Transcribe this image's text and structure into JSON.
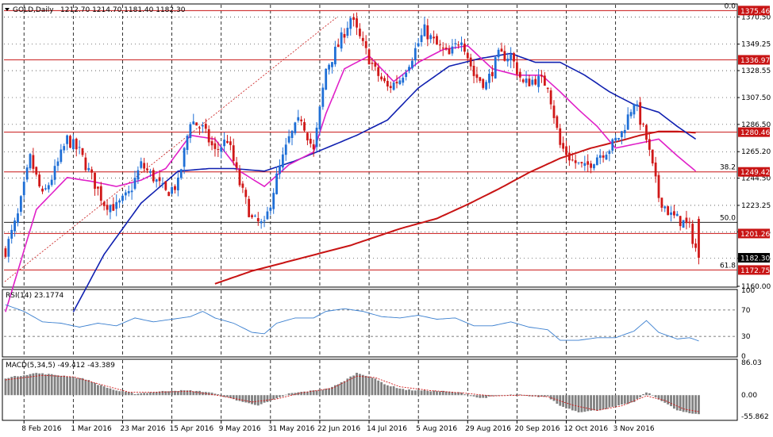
{
  "header": {
    "symbol": "GOLD,Daily",
    "ohlc": "1212.70 1214.70 1181.40 1182.30"
  },
  "colors": {
    "bull": "#1f6fd6",
    "bear": "#d01818",
    "ma_fast": "#e020c8",
    "ma_mid": "#1020b0",
    "ma_slow": "#c81414",
    "level_line": "#c81414",
    "rsi_line": "#3a7fcf",
    "hist": "#808080",
    "signal": "#d01818",
    "grid": "#000000"
  },
  "chart_data": [
    {
      "type": "candlestick",
      "title": "GOLD,Daily",
      "ylim": [
        1160.0,
        1380.0
      ],
      "x_ticks": [
        "8 Feb 2016",
        "1 Mar 2016",
        "23 Mar 2016",
        "15 Apr 2016",
        "9 May 2016",
        "31 May 2016",
        "22 Jun 2016",
        "14 Jul 2016",
        "5 Aug 2016",
        "29 Aug 2016",
        "20 Sep 2016",
        "12 Oct 2016",
        "3 Nov 2016"
      ],
      "y_ticks": [
        1160.0,
        1181.85,
        1202.55,
        1223.25,
        1244.5,
        1265.2,
        1286.5,
        1307.5,
        1328.55,
        1349.25,
        1370.5
      ],
      "last_price": 1182.3,
      "series": [
        {
          "name": "1375.46",
          "kind": "level",
          "value": 1375.46
        },
        {
          "name": "1336.97",
          "kind": "level",
          "value": 1336.97
        },
        {
          "name": "1280.46",
          "kind": "level",
          "value": 1280.46
        },
        {
          "name": "1249.42",
          "kind": "level",
          "value": 1249.42
        },
        {
          "name": "1201.26",
          "kind": "level",
          "value": 1201.26
        },
        {
          "name": "1172.75",
          "kind": "level",
          "value": 1172.75
        }
      ],
      "fibonacci": [
        {
          "label": "0.0",
          "value": 1375.46
        },
        {
          "label": "38.2",
          "value": 1249.42
        },
        {
          "label": "50.0",
          "value": 1210.0
        },
        {
          "label": "61.8",
          "value": 1172.75
        }
      ],
      "price_path": [
        [
          0,
          1188
        ],
        [
          4,
          1215
        ],
        [
          8,
          1260
        ],
        [
          12,
          1230
        ],
        [
          16,
          1250
        ],
        [
          20,
          1275
        ],
        [
          24,
          1265
        ],
        [
          28,
          1245
        ],
        [
          32,
          1225
        ],
        [
          36,
          1222
        ],
        [
          40,
          1232
        ],
        [
          44,
          1255
        ],
        [
          48,
          1245
        ],
        [
          52,
          1233
        ],
        [
          56,
          1240
        ],
        [
          60,
          1290
        ],
        [
          64,
          1283
        ],
        [
          68,
          1265
        ],
        [
          72,
          1275
        ],
        [
          76,
          1240
        ],
        [
          80,
          1212
        ],
        [
          84,
          1207
        ],
        [
          88,
          1245
        ],
        [
          92,
          1275
        ],
        [
          96,
          1292
        ],
        [
          100,
          1265
        ],
        [
          104,
          1330
        ],
        [
          108,
          1348
        ],
        [
          112,
          1370
        ],
        [
          116,
          1348
        ],
        [
          120,
          1328
        ],
        [
          124,
          1315
        ],
        [
          128,
          1322
        ],
        [
          132,
          1340
        ],
        [
          136,
          1360
        ],
        [
          140,
          1348
        ],
        [
          144,
          1340
        ],
        [
          148,
          1355
        ],
        [
          152,
          1325
        ],
        [
          156,
          1318
        ],
        [
          160,
          1340
        ],
        [
          164,
          1340
        ],
        [
          168,
          1318
        ],
        [
          172,
          1322
        ],
        [
          176,
          1318
        ],
        [
          180,
          1270
        ],
        [
          184,
          1258
        ],
        [
          188,
          1252
        ],
        [
          192,
          1262
        ],
        [
          196,
          1268
        ],
        [
          200,
          1280
        ],
        [
          204,
          1305
        ],
        [
          208,
          1275
        ],
        [
          212,
          1230
        ],
        [
          216,
          1215
        ],
        [
          220,
          1210
        ],
        [
          222,
          1205
        ],
        [
          225,
          1182.3
        ]
      ],
      "ma_fast": [
        [
          0,
          1140
        ],
        [
          10,
          1220
        ],
        [
          20,
          1245
        ],
        [
          28,
          1242
        ],
        [
          36,
          1238
        ],
        [
          44,
          1243
        ],
        [
          52,
          1252
        ],
        [
          60,
          1278
        ],
        [
          68,
          1275
        ],
        [
          76,
          1250
        ],
        [
          84,
          1238
        ],
        [
          92,
          1255
        ],
        [
          100,
          1265
        ],
        [
          104,
          1295
        ],
        [
          110,
          1330
        ],
        [
          118,
          1340
        ],
        [
          126,
          1320
        ],
        [
          134,
          1335
        ],
        [
          142,
          1345
        ],
        [
          150,
          1348
        ],
        [
          158,
          1330
        ],
        [
          166,
          1325
        ],
        [
          174,
          1325
        ],
        [
          180,
          1312
        ],
        [
          186,
          1298
        ],
        [
          192,
          1285
        ],
        [
          198,
          1268
        ],
        [
          206,
          1272
        ],
        [
          212,
          1275
        ],
        [
          218,
          1262
        ],
        [
          224,
          1250
        ]
      ],
      "ma_mid": [
        [
          22,
          1140
        ],
        [
          32,
          1185
        ],
        [
          44,
          1225
        ],
        [
          56,
          1250
        ],
        [
          66,
          1252
        ],
        [
          74,
          1252
        ],
        [
          84,
          1250
        ],
        [
          94,
          1258
        ],
        [
          104,
          1268
        ],
        [
          114,
          1278
        ],
        [
          124,
          1290
        ],
        [
          134,
          1315
        ],
        [
          144,
          1332
        ],
        [
          154,
          1338
        ],
        [
          164,
          1342
        ],
        [
          172,
          1335
        ],
        [
          180,
          1335
        ],
        [
          188,
          1325
        ],
        [
          196,
          1312
        ],
        [
          204,
          1302
        ],
        [
          212,
          1296
        ],
        [
          218,
          1285
        ],
        [
          224,
          1275
        ]
      ],
      "ma_slow": [
        [
          68,
          1162
        ],
        [
          80,
          1172
        ],
        [
          96,
          1182
        ],
        [
          112,
          1192
        ],
        [
          128,
          1205
        ],
        [
          140,
          1213
        ],
        [
          150,
          1224
        ],
        [
          160,
          1236
        ],
        [
          170,
          1249
        ],
        [
          180,
          1260
        ],
        [
          190,
          1268
        ],
        [
          200,
          1274
        ],
        [
          206,
          1278
        ],
        [
          212,
          1281
        ],
        [
          218,
          1281
        ],
        [
          224,
          1280
        ]
      ]
    },
    {
      "type": "line",
      "title": "RSI(14) 23.1774",
      "ylim": [
        0,
        100
      ],
      "y_ticks": [
        0,
        30,
        70,
        100
      ],
      "levels": [
        30,
        70
      ],
      "values": [
        [
          0,
          78
        ],
        [
          6,
          68
        ],
        [
          12,
          52
        ],
        [
          18,
          50
        ],
        [
          24,
          44
        ],
        [
          30,
          50
        ],
        [
          36,
          46
        ],
        [
          42,
          58
        ],
        [
          48,
          52
        ],
        [
          54,
          56
        ],
        [
          60,
          60
        ],
        [
          64,
          68
        ],
        [
          68,
          58
        ],
        [
          74,
          50
        ],
        [
          80,
          36
        ],
        [
          84,
          34
        ],
        [
          88,
          50
        ],
        [
          94,
          58
        ],
        [
          100,
          58
        ],
        [
          104,
          68
        ],
        [
          110,
          72
        ],
        [
          116,
          68
        ],
        [
          122,
          60
        ],
        [
          128,
          58
        ],
        [
          134,
          62
        ],
        [
          140,
          56
        ],
        [
          146,
          58
        ],
        [
          152,
          46
        ],
        [
          158,
          46
        ],
        [
          164,
          52
        ],
        [
          170,
          44
        ],
        [
          176,
          40
        ],
        [
          180,
          24
        ],
        [
          186,
          24
        ],
        [
          192,
          28
        ],
        [
          198,
          28
        ],
        [
          204,
          38
        ],
        [
          208,
          54
        ],
        [
          212,
          36
        ],
        [
          218,
          26
        ],
        [
          222,
          28
        ],
        [
          225,
          23
        ]
      ]
    },
    {
      "type": "bar",
      "title": "MACD(5,34,5) -49.412 -43.389",
      "ylim": [
        -64.0,
        92.0
      ],
      "y_ticks": [
        -55.862,
        0.0,
        86.03
      ],
      "histogram_path": [
        [
          0,
          45
        ],
        [
          10,
          58
        ],
        [
          20,
          50
        ],
        [
          26,
          42
        ],
        [
          30,
          28
        ],
        [
          36,
          12
        ],
        [
          42,
          4
        ],
        [
          48,
          8
        ],
        [
          54,
          12
        ],
        [
          60,
          12
        ],
        [
          66,
          8
        ],
        [
          72,
          -6
        ],
        [
          78,
          -20
        ],
        [
          82,
          -26
        ],
        [
          86,
          -16
        ],
        [
          92,
          4
        ],
        [
          98,
          10
        ],
        [
          104,
          16
        ],
        [
          108,
          28
        ],
        [
          114,
          58
        ],
        [
          118,
          50
        ],
        [
          124,
          26
        ],
        [
          130,
          14
        ],
        [
          136,
          12
        ],
        [
          142,
          10
        ],
        [
          148,
          6
        ],
        [
          154,
          -8
        ],
        [
          160,
          -2
        ],
        [
          166,
          2
        ],
        [
          170,
          -4
        ],
        [
          176,
          -4
        ],
        [
          180,
          -28
        ],
        [
          186,
          -44
        ],
        [
          192,
          -40
        ],
        [
          198,
          -30
        ],
        [
          204,
          -18
        ],
        [
          208,
          8
        ],
        [
          212,
          -10
        ],
        [
          218,
          -40
        ],
        [
          222,
          -48
        ],
        [
          225,
          -49.4
        ]
      ],
      "signal_path": [
        [
          0,
          40
        ],
        [
          12,
          52
        ],
        [
          22,
          48
        ],
        [
          30,
          30
        ],
        [
          40,
          8
        ],
        [
          50,
          8
        ],
        [
          60,
          10
        ],
        [
          70,
          -2
        ],
        [
          80,
          -18
        ],
        [
          88,
          -10
        ],
        [
          96,
          6
        ],
        [
          106,
          18
        ],
        [
          114,
          50
        ],
        [
          120,
          46
        ],
        [
          128,
          22
        ],
        [
          138,
          12
        ],
        [
          148,
          6
        ],
        [
          158,
          -2
        ],
        [
          168,
          0
        ],
        [
          176,
          -4
        ],
        [
          184,
          -26
        ],
        [
          192,
          -40
        ],
        [
          200,
          -28
        ],
        [
          208,
          -2
        ],
        [
          214,
          -14
        ],
        [
          220,
          -36
        ],
        [
          225,
          -43.4
        ]
      ]
    }
  ]
}
